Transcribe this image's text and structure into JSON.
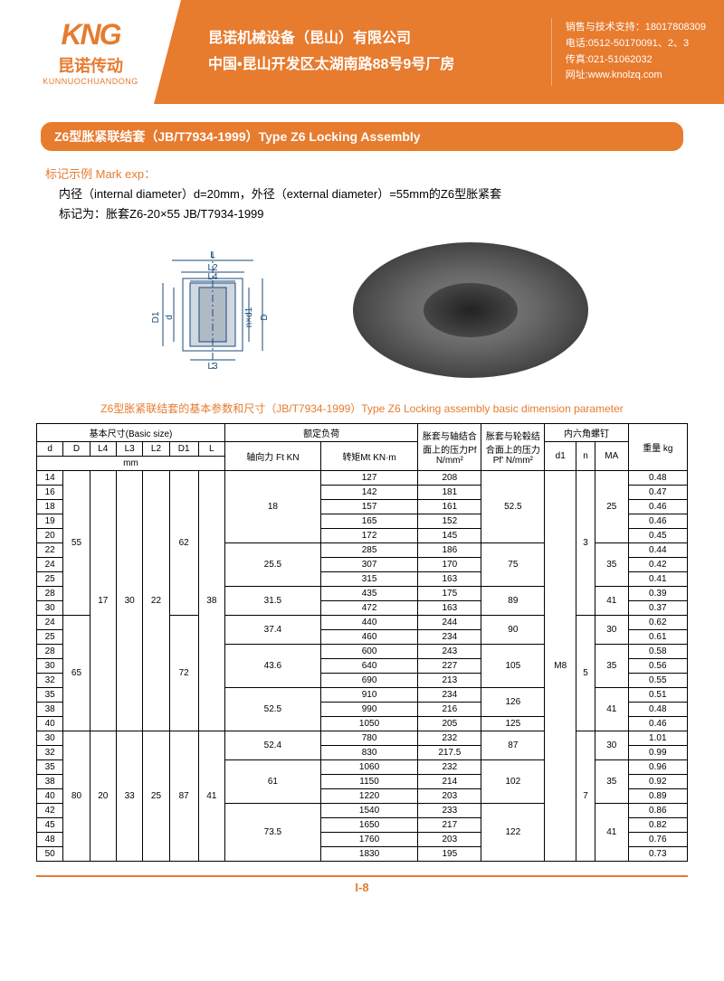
{
  "header": {
    "logo_main": "KNG",
    "logo_sub": "昆诺传动",
    "logo_en": "KUNNUOCHUANDONG",
    "company_cn": "昆诺机械设备（昆山）有限公司",
    "address_cn": "中国•昆山开发区太湖南路88号9号厂房",
    "contact1": "销售与技术支持：18017808309",
    "contact2": "电话:0512-50170091、2、3",
    "contact3": "传真:021-51062032",
    "contact4": "网址:www.knolzq.com"
  },
  "section_title": "Z6型胀紧联结套（JB/T7934-1999）Type Z6 Locking Assembly",
  "mark": {
    "title": "标记示例 Mark exp：",
    "line1": "内径（internal diameter）d=20mm，外径（external diameter）=55mm的Z6型胀紧套",
    "line2": "标记为：胀套Z6-20×55  JB/T7934-1999"
  },
  "diagram": {
    "labels": [
      "L",
      "L2",
      "L4",
      "D1",
      "d",
      "n×d1",
      "D",
      "L3"
    ]
  },
  "table_title": "Z6型胀紧联结套的基本参数和尺寸（JB/T7934-1999）Type Z6 Locking assembly basic dimension parameter",
  "columns": {
    "group1": "基本尺寸(Basic size)",
    "group2": "额定负荷",
    "group3": "胀套与轴结合面上的压力Pf N/mm²",
    "group4": "胀套与轮毂结合面上的压力Pf' N/mm²",
    "group5": "内六角螺钉",
    "group6": "重量 kg",
    "sub": [
      "d",
      "D",
      "L4",
      "L3",
      "L2",
      "D1",
      "L",
      "轴向力 Ft KN",
      "转矩Mt KN·m",
      "d1",
      "n",
      "MA"
    ],
    "mm": "mm"
  },
  "rows": [
    {
      "d": "14",
      "D": "55",
      "L4": "17",
      "L3": "30",
      "L2": "22",
      "D1": "62",
      "L": "38",
      "Ft": "18",
      "Mt": "127",
      "Pf": "208",
      "Pfp": "52.5",
      "d1": "M8",
      "n": "3",
      "MA": "25",
      "kg": "0.48"
    },
    {
      "d": "16",
      "Mt": "142",
      "Pf": "181",
      "kg": "0.47"
    },
    {
      "d": "18",
      "Mt": "157",
      "Pf": "161",
      "kg": "0.46"
    },
    {
      "d": "19",
      "Mt": "165",
      "Pf": "152",
      "kg": "0.46"
    },
    {
      "d": "20",
      "Mt": "172",
      "Pf": "145",
      "kg": "0.45"
    },
    {
      "d": "22",
      "Ft": "25.5",
      "Mt": "285",
      "Pf": "186",
      "Pfp": "75",
      "MA": "35",
      "kg": "0.44"
    },
    {
      "d": "24",
      "Mt": "307",
      "Pf": "170",
      "kg": "0.42"
    },
    {
      "d": "25",
      "Mt": "315",
      "Pf": "163",
      "kg": "0.41"
    },
    {
      "d": "28",
      "Ft": "31.5",
      "Mt": "435",
      "Pf": "175",
      "Pfp": "89",
      "MA": "41",
      "kg": "0.39"
    },
    {
      "d": "30",
      "Mt": "472",
      "Pf": "163",
      "kg": "0.37"
    },
    {
      "d": "24",
      "D": "65",
      "D1": "72",
      "Ft": "37.4",
      "Mt": "440",
      "Pf": "244",
      "Pfp": "90",
      "n": "5",
      "MA": "30",
      "kg": "0.62"
    },
    {
      "d": "25",
      "Mt": "460",
      "Pf": "234",
      "kg": "0.61"
    },
    {
      "d": "28",
      "Ft": "43.6",
      "Mt": "600",
      "Pf": "243",
      "Pfp": "105",
      "MA": "35",
      "kg": "0.58"
    },
    {
      "d": "30",
      "Mt": "640",
      "Pf": "227",
      "kg": "0.56"
    },
    {
      "d": "32",
      "Mt": "690",
      "Pf": "213",
      "kg": "0.55"
    },
    {
      "d": "35",
      "Ft": "52.5",
      "Mt": "910",
      "Pf": "234",
      "Pfp": "126",
      "MA": "41",
      "kg": "0.51"
    },
    {
      "d": "38",
      "Mt": "990",
      "Pf": "216",
      "kg": "0.48"
    },
    {
      "d": "40",
      "Mt": "1050",
      "Pf": "205",
      "Pfp": "125",
      "kg": "0.46"
    },
    {
      "d": "30",
      "D": "80",
      "L4": "20",
      "L3": "33",
      "L2": "25",
      "D1": "87",
      "L": "41",
      "Ft": "52.4",
      "Mt": "780",
      "Pf": "232",
      "Pfp": "87",
      "n": "7",
      "MA": "30",
      "kg": "1.01"
    },
    {
      "d": "32",
      "Mt": "830",
      "Pf": "217.5",
      "kg": "0.99"
    },
    {
      "d": "35",
      "Ft": "61",
      "Mt": "1060",
      "Pf": "232",
      "Pfp": "102",
      "MA": "35",
      "kg": "0.96"
    },
    {
      "d": "38",
      "Mt": "1150",
      "Pf": "214",
      "kg": "0.92"
    },
    {
      "d": "40",
      "Mt": "1220",
      "Pf": "203",
      "kg": "0.89"
    },
    {
      "d": "42",
      "Ft": "73.5",
      "Mt": "1540",
      "Pf": "233",
      "Pfp": "122",
      "MA": "41",
      "kg": "0.86"
    },
    {
      "d": "45",
      "Mt": "1650",
      "Pf": "217",
      "kg": "0.82"
    },
    {
      "d": "48",
      "Mt": "1760",
      "Pf": "203",
      "kg": "0.76"
    },
    {
      "d": "50",
      "Mt": "1830",
      "Pf": "195",
      "kg": "0.73"
    }
  ],
  "footer": "I-8",
  "colors": {
    "primary": "#e77b2e",
    "text": "#000000",
    "bg": "#ffffff"
  }
}
